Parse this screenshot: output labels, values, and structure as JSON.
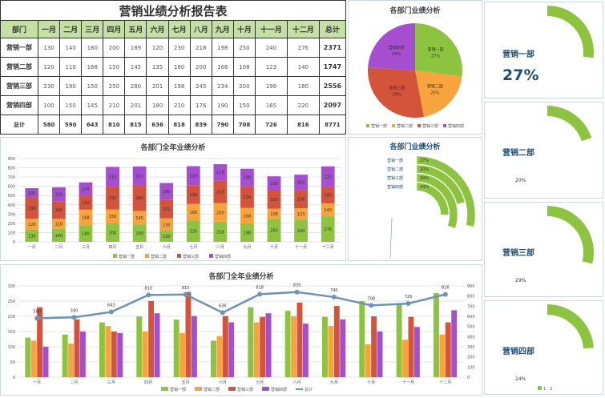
{
  "table": {
    "title": "营销业绩分析报告表",
    "headers": [
      "部门",
      "一月",
      "二月",
      "三月",
      "四月",
      "五月",
      "六月",
      "七月",
      "八月",
      "九月",
      "十月",
      "十一月",
      "十二月",
      "总计"
    ],
    "rows": [
      {
        "dept": "营销一部",
        "values": [
          130,
          140,
          180,
          200,
          189,
          120,
          230,
          218,
          198,
          250,
          240,
          276
        ],
        "total": 2371
      },
      {
        "dept": "营销二部",
        "values": [
          120,
          110,
          168,
          150,
          145,
          135,
          180,
          200,
          168,
          108,
          123,
          140
        ],
        "total": 1747
      },
      {
        "dept": "营销三部",
        "values": [
          230,
          190,
          150,
          250,
          280,
          201,
          198,
          245,
          234,
          200,
          198,
          180
        ],
        "total": 2556
      },
      {
        "dept": "营销四部",
        "values": [
          100,
          150,
          145,
          210,
          201,
          180,
          210,
          176,
          190,
          150,
          165,
          220
        ],
        "total": 2097
      }
    ],
    "total_row": {
      "label": "总计",
      "values": [
        580,
        590,
        643,
        810,
        815,
        636,
        818,
        839,
        790,
        708,
        726,
        816
      ],
      "total": 8771
    }
  },
  "colors": {
    "green": "#8cc43f",
    "orange": "#f8a43c",
    "red": "#d4533b",
    "purple": "#a54fd0",
    "line": "#6b94b5",
    "title": "#1f4e79"
  },
  "chart_data": [
    {
      "type": "bar",
      "stacked": true,
      "title": "各部门全年业绩分析",
      "categories": [
        "一月",
        "二月",
        "三月",
        "四月",
        "五月",
        "六月",
        "七月",
        "八月",
        "九月",
        "十月",
        "十一月",
        "十二月"
      ],
      "yticks": [
        "0",
        "100",
        "200",
        "300",
        "400",
        "500",
        "600",
        "700",
        "800",
        "900"
      ],
      "ylim": [
        0,
        900
      ],
      "series": [
        {
          "name": "营销一部",
          "values": [
            130,
            140,
            180,
            200,
            189,
            120,
            230,
            218,
            198,
            250,
            240,
            276
          ]
        },
        {
          "name": "营销二部",
          "values": [
            120,
            110,
            168,
            150,
            145,
            135,
            180,
            200,
            168,
            108,
            123,
            140
          ]
        },
        {
          "name": "营销三部",
          "values": [
            230,
            190,
            150,
            250,
            280,
            201,
            198,
            245,
            234,
            200,
            198,
            180
          ]
        },
        {
          "name": "营销四部",
          "values": [
            100,
            150,
            145,
            210,
            201,
            180,
            210,
            176,
            190,
            150,
            165,
            220
          ]
        }
      ],
      "legend": "bottom"
    },
    {
      "type": "pie",
      "title": "各部门业绩分析",
      "labels": [
        "营销一部",
        "营销二部",
        "营销三部",
        "营销四部"
      ],
      "values": [
        27,
        20,
        29,
        24
      ],
      "value_labels": [
        "27%",
        "20%",
        "29%",
        "24%"
      ],
      "legend": "bottom"
    },
    {
      "type": "bar",
      "subtype": "radial",
      "title": "各部门业绩分析",
      "labels": [
        "营销一部",
        "营销二部",
        "营销三部",
        "营销四部"
      ],
      "values": [
        27,
        20,
        29,
        24
      ],
      "value_labels": [
        "27%",
        "20%",
        "29%",
        "24%"
      ]
    },
    {
      "type": "bar",
      "combo_line": true,
      "title": "各部门全年业绩分析",
      "categories": [
        "一月",
        "二月",
        "三月",
        "四月",
        "五月",
        "六月",
        "七月",
        "八月",
        "九月",
        "十月",
        "十一月",
        "十二月"
      ],
      "yticks": [
        "0",
        "50",
        "100",
        "150",
        "200",
        "250",
        "300"
      ],
      "ylim": [
        0,
        300
      ],
      "y2ticks": [
        "0",
        "100",
        "200",
        "300",
        "400",
        "500",
        "600",
        "700",
        "800",
        "900"
      ],
      "y2lim": [
        0,
        900
      ],
      "line": {
        "name": "总计",
        "values": [
          580,
          590,
          643,
          810,
          815,
          636,
          818,
          839,
          790,
          708,
          726,
          816
        ]
      },
      "legend": "bottom"
    }
  ],
  "cards": [
    {
      "title": "营销一部",
      "pct": "27%",
      "value": 27
    },
    {
      "title": "营销二部",
      "pct": "20%",
      "value": 20
    },
    {
      "title": "营销三部",
      "pct": "29%",
      "value": 29
    },
    {
      "title": "营销四部",
      "pct": "24%",
      "value": 24
    }
  ],
  "card_legend": [
    "1",
    "2"
  ]
}
